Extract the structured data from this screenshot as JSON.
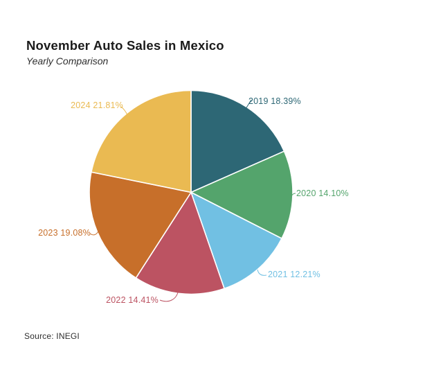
{
  "header": {
    "title": "November Auto Sales in Mexico",
    "subtitle": "Yearly Comparison"
  },
  "footer": {
    "source": "Source: INEGI"
  },
  "chart_data": {
    "type": "pie",
    "title": "November Auto Sales in Mexico",
    "subtitle": "Yearly Comparison",
    "source": "Source: INEGI",
    "start_angle_deg": 0,
    "direction": "clockwise",
    "legend_position": "outside-labels",
    "slices": [
      {
        "label": "2019",
        "value": 18.39,
        "display": "2019 18.39%",
        "color": "#2d6775"
      },
      {
        "label": "2020",
        "value": 14.1,
        "display": "2020 14.10%",
        "color": "#54a46c"
      },
      {
        "label": "2021",
        "value": 12.21,
        "display": "2021 12.21%",
        "color": "#71c0e3"
      },
      {
        "label": "2022",
        "value": 14.41,
        "display": "2022 14.41%",
        "color": "#bc5362"
      },
      {
        "label": "2023",
        "value": 19.08,
        "display": "2023 19.08%",
        "color": "#c76f2a"
      },
      {
        "label": "2024",
        "value": 21.81,
        "display": "2024 21.81%",
        "color": "#eaba52"
      }
    ]
  }
}
